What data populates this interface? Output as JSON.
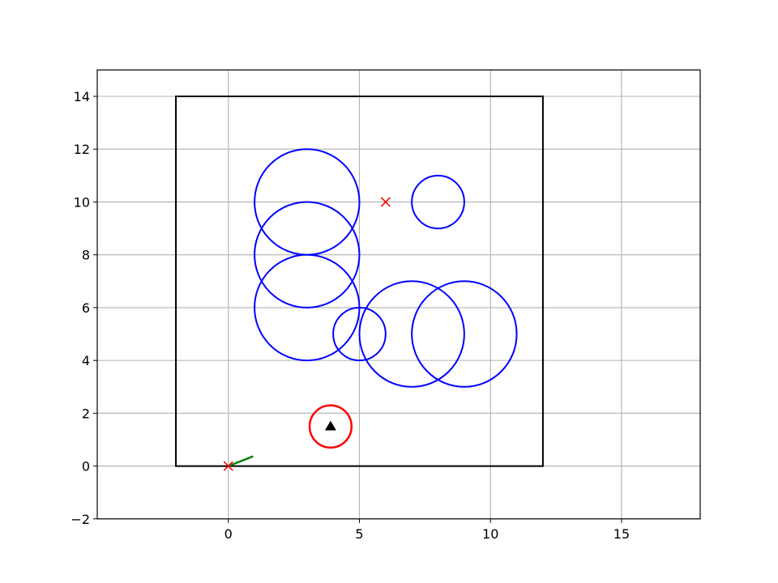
{
  "chart_data": {
    "type": "scatter",
    "xlim": [
      -5,
      18
    ],
    "ylim": [
      -2,
      15
    ],
    "xticks": [
      0,
      5,
      10,
      15
    ],
    "yticks": [
      -2,
      0,
      2,
      4,
      6,
      8,
      10,
      12,
      14
    ],
    "xtick_labels": [
      "0",
      "5",
      "10",
      "15"
    ],
    "ytick_labels": [
      "−2",
      "0",
      "2",
      "4",
      "6",
      "8",
      "10",
      "12",
      "14"
    ],
    "grid": true,
    "boundary": {
      "points": [
        [
          -2,
          0
        ],
        [
          12,
          0
        ],
        [
          12,
          14
        ],
        [
          -2,
          14
        ]
      ],
      "color": "#000000"
    },
    "obstacles": {
      "color": "#0000ff",
      "circles": [
        {
          "cx": 3,
          "cy": 10,
          "r": 2
        },
        {
          "cx": 3,
          "cy": 8,
          "r": 2
        },
        {
          "cx": 3,
          "cy": 6,
          "r": 2
        },
        {
          "cx": 5,
          "cy": 5,
          "r": 1
        },
        {
          "cx": 7,
          "cy": 5,
          "r": 2
        },
        {
          "cx": 9,
          "cy": 5,
          "r": 2
        },
        {
          "cx": 8,
          "cy": 10,
          "r": 1
        }
      ]
    },
    "markers_x": {
      "color": "#ff0000",
      "points": [
        [
          0,
          0
        ],
        [
          6,
          10
        ]
      ]
    },
    "robot": {
      "circle": {
        "cx": 3.9,
        "cy": 1.5,
        "r": 0.8
      },
      "circle_color": "#ff0000",
      "triangle": [
        3.9,
        1.5
      ],
      "triangle_color": "#000000"
    },
    "path": {
      "color": "#008000",
      "points": [
        [
          0,
          0
        ],
        [
          0.95,
          0.37
        ]
      ]
    }
  }
}
